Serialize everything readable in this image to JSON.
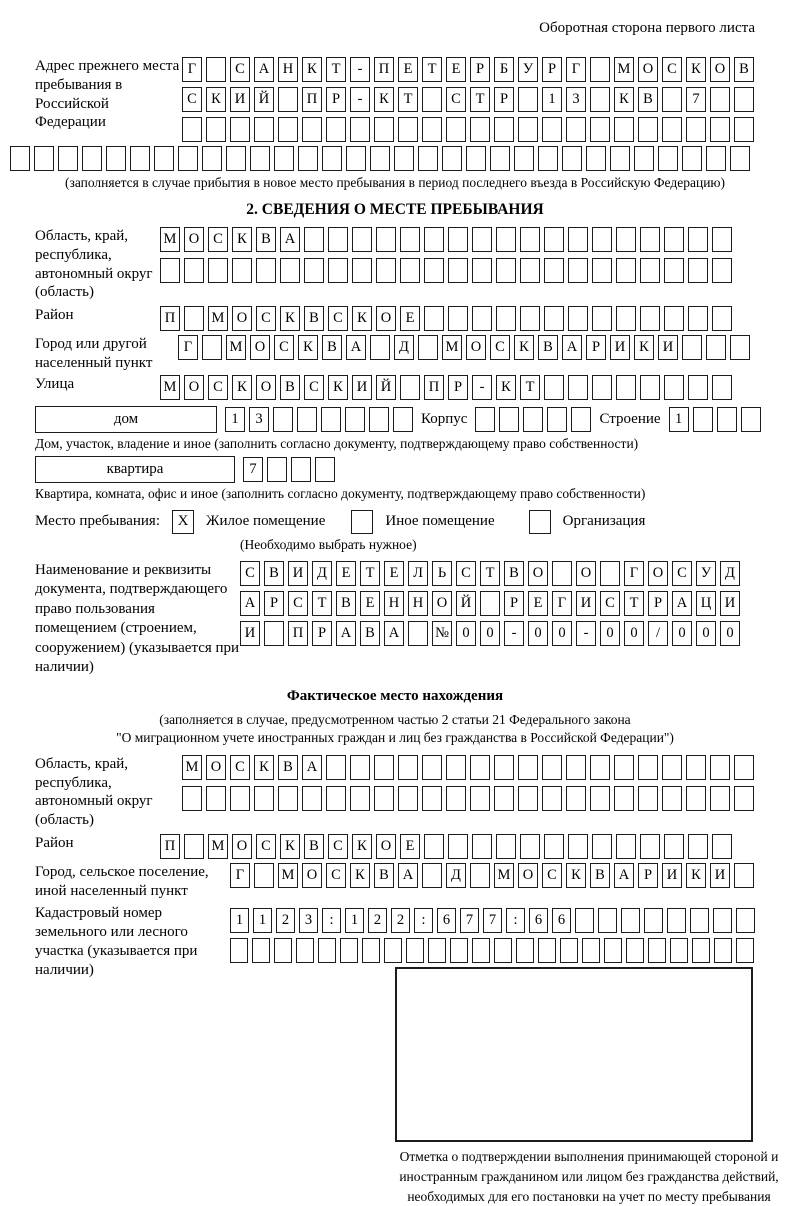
{
  "header": {
    "note": "Оборотная сторона первого листа"
  },
  "prev_address": {
    "label": "Адрес прежнего места пребывания в Российской Федерации",
    "row1": {
      "t": "Г САНКТ-ПЕТЕРБУРГ МОСКОВ",
      "n": 24
    },
    "row2": {
      "t": "СКИЙ ПР-КТ СТР 13 КВ 7",
      "n": 24
    },
    "row3": {
      "t": "",
      "n": 24
    },
    "row4": {
      "t": "",
      "n": 31
    },
    "note": "(заполняется в случае прибытия в новое место пребывания в период последнего въезда в Российскую Федерацию)"
  },
  "section2": {
    "title": "2. СВЕДЕНИЯ О МЕСТЕ ПРЕБЫВАНИЯ",
    "oblast": {
      "label": "Область, край, республика, автономный округ (область)",
      "row1": {
        "t": "МОСКВА",
        "n": 24
      },
      "row2": {
        "t": "",
        "n": 24
      }
    },
    "raion": {
      "label": "Район",
      "row": {
        "t": "П МОСКВСКОЕ",
        "n": 24
      }
    },
    "gorod": {
      "label": "Город или другой населенный пункт",
      "row": {
        "t": "Г МОСКВА Д МОСКВАРИКИ",
        "n": 24
      }
    },
    "ulitsa": {
      "label": "Улица",
      "row": {
        "t": "МОСКОВСКИЙ ПР-КТ",
        "n": 24
      }
    },
    "dom": {
      "label": "дом",
      "row": {
        "t": "13",
        "n": 8
      },
      "korpus_label": "Корпус",
      "korpus_row": {
        "t": "",
        "n": 5
      },
      "stroenie_label": "Строение",
      "stroenie_row": {
        "t": "1",
        "n": 4
      }
    },
    "dom_caption": "Дом, участок, владение и иное (заполнить согласно документу, подтверждающему право собственности)",
    "kvartira": {
      "label": "квартира",
      "row": {
        "t": "7",
        "n": 4
      }
    },
    "kvartira_caption": "Квартира, комната, офис и иное (заполнить согласно документу, подтверждающему право собственности)",
    "mesto": {
      "label": "Место пребывания:",
      "options": [
        {
          "checkbox": "X",
          "label": "Жилое помещение"
        },
        {
          "checkbox": "",
          "label": "Иное помещение"
        },
        {
          "checkbox": "",
          "label": "Организация"
        }
      ],
      "note": "(Необходимо выбрать нужное)"
    },
    "document": {
      "label": "Наименование и реквизиты документа, подтверждающего право пользования помещением (строением, сооружением) (указывается при наличии)",
      "row1": {
        "t": "СВИДЕТЕЛЬСТВО О ГОСУД",
        "n": 21
      },
      "row2": {
        "t": "АРСТВЕННОЙ РЕГИСТРАЦИ",
        "n": 21
      },
      "row3": {
        "t": "И ПРАВА №00-00-00/000",
        "n": 21
      }
    }
  },
  "fact": {
    "title": "Фактическое место нахождения",
    "note1": "(заполняется в случае, предусмотренном частью 2 статьи 21 Федерального закона",
    "note2": "\"О миграционном учете иностранных граждан и лиц без гражданства в Российской Федерации\")",
    "oblast": {
      "label": "Область, край, республика, автономный округ (область)",
      "row1": {
        "t": "МОСКВА",
        "n": 24
      },
      "row2": {
        "t": "",
        "n": 24
      }
    },
    "raion": {
      "label": "Район",
      "row": {
        "t": "П МОСКВСКОЕ",
        "n": 24
      }
    },
    "gorod": {
      "label": "Город, сельское поселение, иной населенный пункт",
      "row": {
        "t": "Г МОСКВА Д МОСКВАРИКИ",
        "n": 22
      }
    },
    "kadastr": {
      "label": "Кадастровый номер земельного или лесного участка (указывается при наличии)",
      "row1": {
        "t": "1123:122:677:66",
        "n": 23
      },
      "row2": {
        "t": "",
        "n": 24
      }
    }
  },
  "stamp": {
    "caption": "Отметка о подтверждении выполнения принимающей стороной и иностранным гражданином или лицом без гражданства действий, необходимых для его постановки на учет по месту пребывания"
  }
}
